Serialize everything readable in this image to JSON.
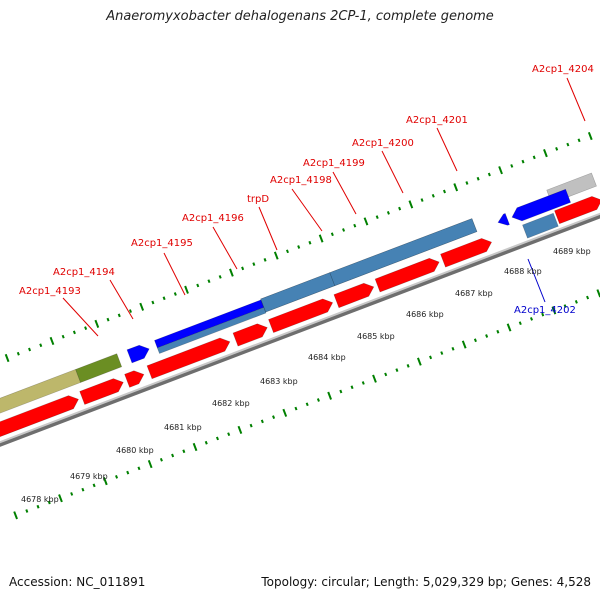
{
  "title": "Anaeromyxobacter dehalogenans 2CP-1, complete genome",
  "footer": {
    "accession": "Accession: NC_011891",
    "summary": "Topology: circular; Length: 5,029,329 bp; Genes: 4,528"
  },
  "colors": {
    "cds": "#ff0000",
    "rna": "#4682b4",
    "gene_blue": "#0000ff",
    "olive": "#6b8e23",
    "khaki": "#bdb76b",
    "gray": "#c0c0c0",
    "tick": "#008000",
    "label_fwd": "#e00000",
    "label_rev": "#0000cc",
    "backbone": "#9a9a9a"
  },
  "scale": {
    "unit": "kbp",
    "ticks": [
      {
        "label": "4678 kbp"
      },
      {
        "label": "4679 kbp"
      },
      {
        "label": "4680 kbp"
      },
      {
        "label": "4681 kbp"
      },
      {
        "label": "4682 kbp"
      },
      {
        "label": "4683 kbp"
      },
      {
        "label": "4684 kbp"
      },
      {
        "label": "4685 kbp"
      },
      {
        "label": "4686 kbp"
      },
      {
        "label": "4687 kbp"
      },
      {
        "label": "4688 kbp"
      },
      {
        "label": "4689 kbp"
      }
    ]
  },
  "genes": [
    {
      "label": "A2cp1_4193",
      "strand": "forward"
    },
    {
      "label": "A2cp1_4194",
      "strand": "forward"
    },
    {
      "label": "A2cp1_4195",
      "strand": "forward"
    },
    {
      "label": "A2cp1_4196",
      "strand": "forward"
    },
    {
      "label": "trpD",
      "strand": "forward"
    },
    {
      "label": "A2cp1_4198",
      "strand": "forward"
    },
    {
      "label": "A2cp1_4199",
      "strand": "forward"
    },
    {
      "label": "A2cp1_4200",
      "strand": "forward"
    },
    {
      "label": "A2cp1_4201",
      "strand": "forward"
    },
    {
      "label": "A2cp1_4202",
      "strand": "reverse"
    },
    {
      "label": "A2cp1_4204",
      "strand": "forward"
    }
  ]
}
